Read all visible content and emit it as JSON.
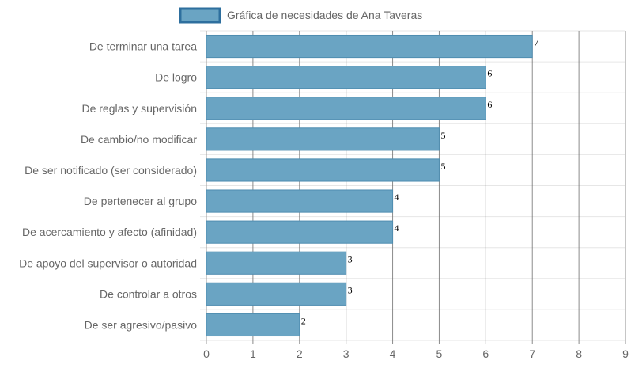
{
  "chart_data": {
    "type": "bar",
    "orientation": "horizontal",
    "categories": [
      "De terminar una tarea",
      "De logro",
      "De reglas y supervisión",
      "De cambio/no modificar",
      "De ser notificado (ser considerado)",
      "De pertenecer al grupo",
      "De acercamiento y afecto (afinidad)",
      "De apoyo del supervisor o autoridad",
      "De controlar a otros",
      "De ser agresivo/pasivo"
    ],
    "series": [
      {
        "name": "Gráfica de necesidades de Ana Taveras",
        "values": [
          7,
          6,
          6,
          5,
          5,
          4,
          4,
          3,
          3,
          2
        ]
      }
    ],
    "xlim": [
      0,
      9
    ],
    "x_ticks": [
      "0",
      "1",
      "2",
      "3",
      "4",
      "5",
      "6",
      "7",
      "8",
      "9"
    ],
    "grid": true,
    "legend": "top",
    "data_labels": true,
    "colors": {
      "bar_fill": "#6aa4c3",
      "bar_stroke": "#4f8db0",
      "legend_fill": "#6aa4c3",
      "legend_stroke": "#2e6f9e",
      "grid": "#e6e6e6",
      "grid_major": "#666666",
      "text": "#666666",
      "value_label": "#000000"
    }
  }
}
